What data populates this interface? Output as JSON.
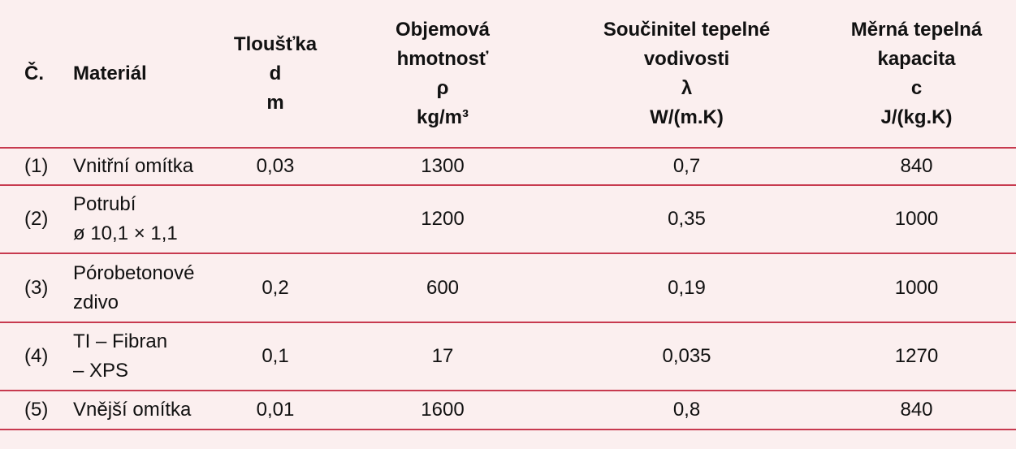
{
  "header": {
    "num": "Č.",
    "material": "Materiál",
    "thickness": [
      "Tloušťka",
      "d",
      "m"
    ],
    "density": [
      "Objemová",
      "hmotnosť",
      "ρ",
      "kg/m³"
    ],
    "conductivity": [
      "Součinitel tepelné",
      "vodivosti",
      "λ",
      "W/(m.K)"
    ],
    "capacity": [
      "Měrná tepelná",
      "kapacita",
      "c",
      "J/(kg.K)"
    ]
  },
  "rows": [
    {
      "num": "(1)",
      "material": [
        "Vnitřní omítka"
      ],
      "d": "0,03",
      "rho": "1300",
      "lambda": "0,7",
      "c": "840"
    },
    {
      "num": "(2)",
      "material": [
        "Potrubí",
        "ø 10,1 × 1,1"
      ],
      "d": "",
      "rho": "1200",
      "lambda": "0,35",
      "c": "1000"
    },
    {
      "num": "(3)",
      "material": [
        "Pórobetonové",
        "zdivo"
      ],
      "d": "0,2",
      "rho": "600",
      "lambda": "0,19",
      "c": "1000"
    },
    {
      "num": "(4)",
      "material": [
        "TI – Fibran",
        "– XPS"
      ],
      "d": "0,1",
      "rho": "17",
      "lambda": "0,035",
      "c": "1270"
    },
    {
      "num": "(5)",
      "material": [
        "Vnější omítka"
      ],
      "d": "0,01",
      "rho": "1600",
      "lambda": "0,8",
      "c": "840"
    }
  ],
  "colors": {
    "background": "#fbefef",
    "rule": "#c73a4f"
  }
}
